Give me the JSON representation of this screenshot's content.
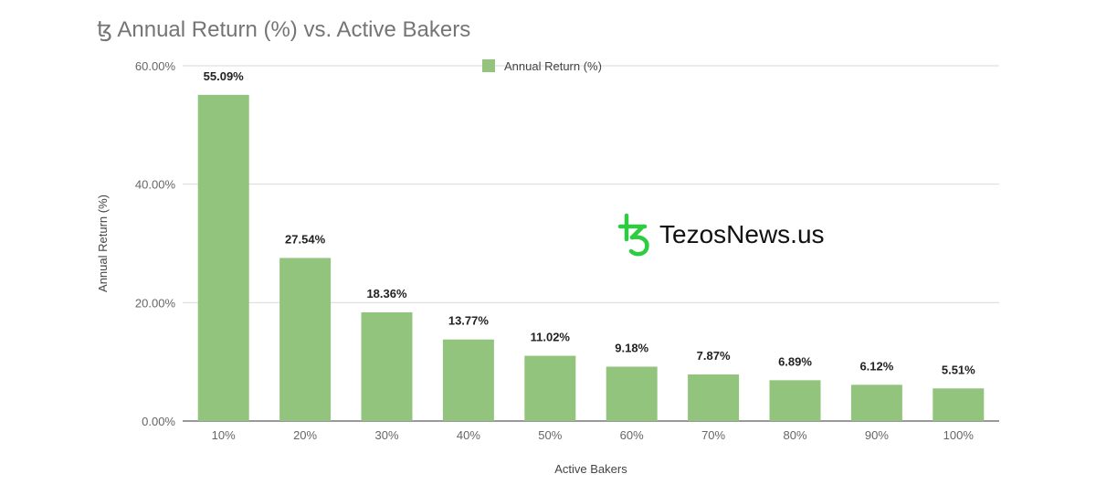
{
  "title": "ꜩ Annual Return (%) vs. Active Bakers",
  "watermark": {
    "text": "TezosNews.us",
    "logo_icon": "tezos-logo-icon",
    "logo_color": "#2ecc40"
  },
  "chart_data": {
    "type": "bar",
    "categories": [
      "10%",
      "20%",
      "30%",
      "40%",
      "50%",
      "60%",
      "70%",
      "80%",
      "90%",
      "100%"
    ],
    "series": [
      {
        "name": "Annual Return (%)",
        "color": "#93c47d",
        "values": [
          55.09,
          27.54,
          18.36,
          13.77,
          11.02,
          9.18,
          7.87,
          6.89,
          6.12,
          5.51
        ]
      }
    ],
    "data_labels": [
      "55.09%",
      "27.54%",
      "18.36%",
      "13.77%",
      "11.02%",
      "9.18%",
      "7.87%",
      "6.89%",
      "6.12%",
      "5.51%"
    ],
    "xlabel": "Active Bakers",
    "ylabel": "Annual Return (%)",
    "yticks": [
      "0.00%",
      "20.00%",
      "40.00%",
      "60.00%"
    ],
    "ylim": [
      0,
      60
    ],
    "grid": true,
    "legend": "top-center"
  }
}
